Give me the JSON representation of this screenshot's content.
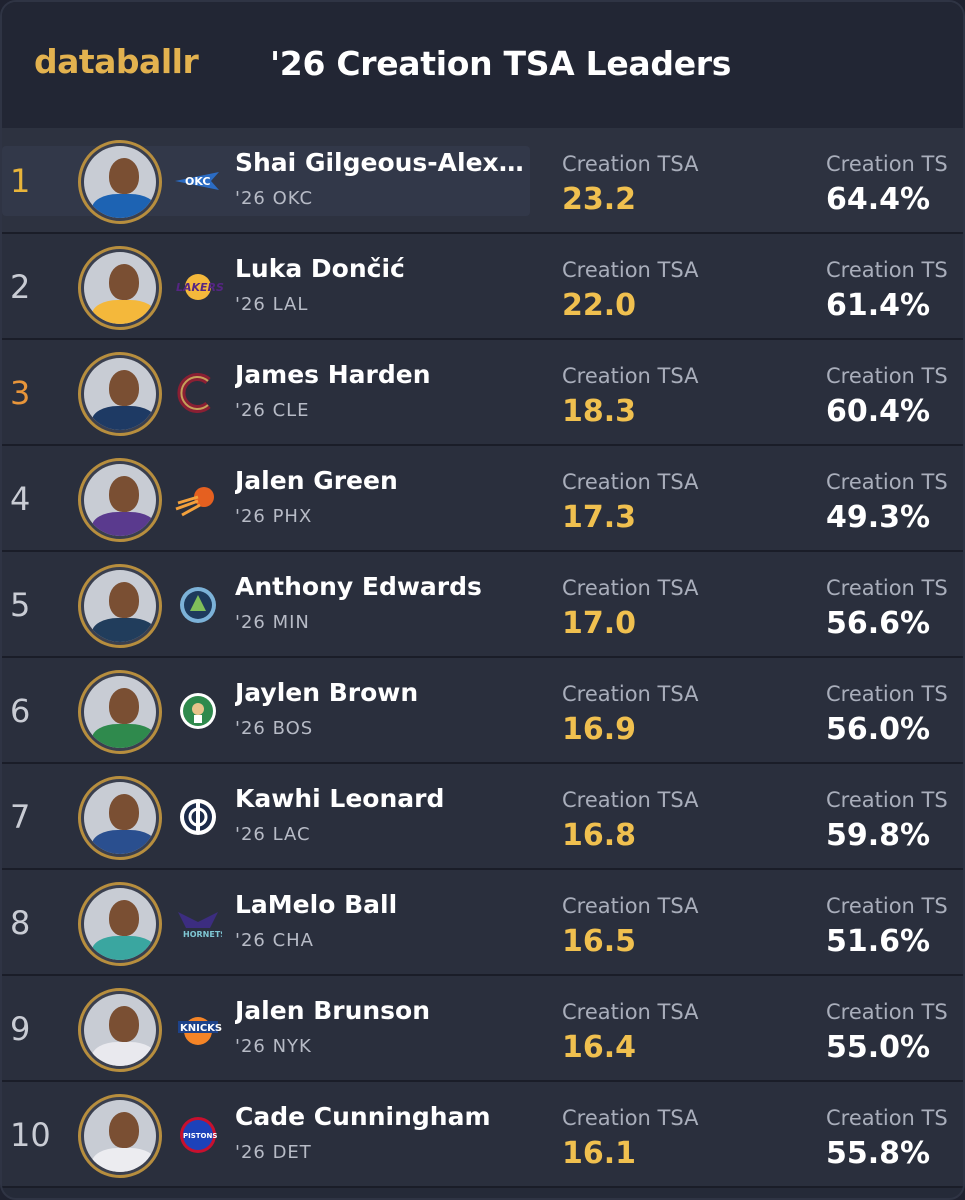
{
  "header": {
    "brand": "databallr",
    "title": "'26 Creation TSA Leaders"
  },
  "columns": {
    "tsa_label": "Creation TSA",
    "ts_label": "Creation TS"
  },
  "colors": {
    "brand": "#e3b24f",
    "tsa_value": "#f0c04f",
    "rank_gold": "#e8b43a",
    "rank_orange": "#e8953a"
  },
  "players": [
    {
      "rank": "1",
      "name": "Shai Gilgeous-Alexander",
      "sub": "'26 OKC",
      "tsa": "23.2",
      "ts": "64.4%",
      "team_logo": "okc-thunder-logo-icon",
      "jersey": "#1d63b3"
    },
    {
      "rank": "2",
      "name": "Luka Dončić",
      "sub": "'26 LAL",
      "tsa": "22.0",
      "ts": "61.4%",
      "team_logo": "lakers-logo-icon",
      "jersey": "#f4b83b"
    },
    {
      "rank": "3",
      "name": "James Harden",
      "sub": "'26 CLE",
      "tsa": "18.3",
      "ts": "60.4%",
      "team_logo": "cavaliers-logo-icon",
      "jersey": "#1e3a64"
    },
    {
      "rank": "4",
      "name": "Jalen Green",
      "sub": "'26 PHX",
      "tsa": "17.3",
      "ts": "49.3%",
      "team_logo": "suns-logo-icon",
      "jersey": "#5a3a8e"
    },
    {
      "rank": "5",
      "name": "Anthony Edwards",
      "sub": "'26 MIN",
      "tsa": "17.0",
      "ts": "56.6%",
      "team_logo": "timberwolves-logo-icon",
      "jersey": "#213d5c"
    },
    {
      "rank": "6",
      "name": "Jaylen Brown",
      "sub": "'26 BOS",
      "tsa": "16.9",
      "ts": "56.0%",
      "team_logo": "celtics-logo-icon",
      "jersey": "#2f8a4d"
    },
    {
      "rank": "7",
      "name": "Kawhi Leonard",
      "sub": "'26 LAC",
      "tsa": "16.8",
      "ts": "59.8%",
      "team_logo": "clippers-logo-icon",
      "jersey": "#2a4f8f"
    },
    {
      "rank": "8",
      "name": "LaMelo Ball",
      "sub": "'26 CHA",
      "tsa": "16.5",
      "ts": "51.6%",
      "team_logo": "hornets-logo-icon",
      "jersey": "#3aa6a0"
    },
    {
      "rank": "9",
      "name": "Jalen Brunson",
      "sub": "'26 NYK",
      "tsa": "16.4",
      "ts": "55.0%",
      "team_logo": "knicks-logo-icon",
      "jersey": "#e9e9ee"
    },
    {
      "rank": "10",
      "name": "Cade Cunningham",
      "sub": "'26 DET",
      "tsa": "16.1",
      "ts": "55.8%",
      "team_logo": "pistons-logo-icon",
      "jersey": "#ececf0"
    }
  ]
}
